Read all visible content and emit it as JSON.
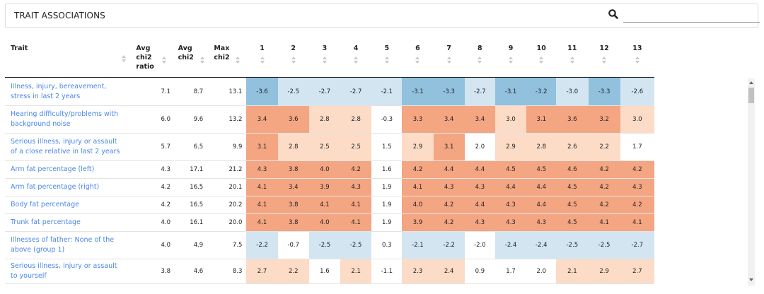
{
  "panel": {
    "title": "TRAIT ASSOCIATIONS"
  },
  "search": {
    "placeholder": "",
    "icon": "search-icon"
  },
  "table": {
    "columns": [
      {
        "key": "trait",
        "label": "Trait"
      },
      {
        "key": "avg_ratio",
        "label": "Avg chi2 ratio"
      },
      {
        "key": "avg_chi2",
        "label": "Avg chi2"
      },
      {
        "key": "max_chi2",
        "label": "Max chi2"
      },
      {
        "key": "c1",
        "label": "1"
      },
      {
        "key": "c2",
        "label": "2"
      },
      {
        "key": "c3",
        "label": "3"
      },
      {
        "key": "c4",
        "label": "4"
      },
      {
        "key": "c5",
        "label": "5"
      },
      {
        "key": "c6",
        "label": "6"
      },
      {
        "key": "c7",
        "label": "7"
      },
      {
        "key": "c8",
        "label": "8"
      },
      {
        "key": "c9",
        "label": "9"
      },
      {
        "key": "c10",
        "label": "10"
      },
      {
        "key": "c11",
        "label": "11"
      },
      {
        "key": "c12",
        "label": "12"
      },
      {
        "key": "c13",
        "label": "13"
      }
    ],
    "rows": [
      {
        "trait": "Illness, injury, bereavement, stress in last 2 years",
        "avg_ratio": "7.1",
        "avg_chi2": "8.7",
        "max_chi2": "13.1",
        "values": [
          "-3.6",
          "-2.5",
          "-2.7",
          "-2.7",
          "-2.1",
          "-3.1",
          "-3.3",
          "-2.7",
          "-3.1",
          "-3.2",
          "-3.0",
          "-3.3",
          "-2.6"
        ]
      },
      {
        "trait": "Hearing difficulty/problems with background noise",
        "avg_ratio": "6.0",
        "avg_chi2": "9.6",
        "max_chi2": "13.2",
        "values": [
          "3.4",
          "3.6",
          "2.8",
          "2.8",
          "-0.3",
          "3.3",
          "3.4",
          "3.4",
          "3.0",
          "3.1",
          "3.6",
          "3.2",
          "3.0"
        ]
      },
      {
        "trait": "Serious illness, injury or assault of a close relative in last 2 years",
        "avg_ratio": "5.7",
        "avg_chi2": "6.5",
        "max_chi2": "9.9",
        "values": [
          "3.1",
          "2.8",
          "2.5",
          "2.5",
          "1.5",
          "2.9",
          "3.1",
          "2.0",
          "2.9",
          "2.8",
          "2.6",
          "2.2",
          "1.7"
        ]
      },
      {
        "trait": "Arm fat percentage (left)",
        "avg_ratio": "4.3",
        "avg_chi2": "17.1",
        "max_chi2": "21.2",
        "values": [
          "4.3",
          "3.8",
          "4.0",
          "4.2",
          "1.6",
          "4.2",
          "4.4",
          "4.4",
          "4.5",
          "4.5",
          "4.6",
          "4.2",
          "4.2"
        ]
      },
      {
        "trait": "Arm fat percentage (right)",
        "avg_ratio": "4.2",
        "avg_chi2": "16.5",
        "max_chi2": "20.1",
        "values": [
          "4.1",
          "3.4",
          "3.9",
          "4.3",
          "1.9",
          "4.1",
          "4.3",
          "4.3",
          "4.4",
          "4.4",
          "4.5",
          "4.2",
          "4.3"
        ]
      },
      {
        "trait": "Body fat percentage",
        "avg_ratio": "4.2",
        "avg_chi2": "16.5",
        "max_chi2": "20.2",
        "values": [
          "4.1",
          "3.8",
          "4.1",
          "4.1",
          "1.9",
          "4.0",
          "4.2",
          "4.4",
          "4.3",
          "4.4",
          "4.5",
          "4.2",
          "4.2"
        ]
      },
      {
        "trait": "Trunk fat percentage",
        "avg_ratio": "4.0",
        "avg_chi2": "16.1",
        "max_chi2": "20.0",
        "values": [
          "4.1",
          "3.8",
          "4.0",
          "4.1",
          "1.9",
          "3.9",
          "4.2",
          "4.3",
          "4.3",
          "4.3",
          "4.5",
          "4.1",
          "4.1"
        ]
      },
      {
        "trait": "Illnesses of father: None of the above (group 1)",
        "avg_ratio": "4.0",
        "avg_chi2": "4.9",
        "max_chi2": "7.5",
        "values": [
          "-2.2",
          "-0.7",
          "-2.5",
          "-2.5",
          "0.3",
          "-2.1",
          "-2.2",
          "-2.0",
          "-2.4",
          "-2.4",
          "-2.5",
          "-2.5",
          "-2.7"
        ]
      },
      {
        "trait": "Serious illness, injury or assault to yourself",
        "avg_ratio": "3.8",
        "avg_chi2": "4.6",
        "max_chi2": "8.3",
        "values": [
          "2.7",
          "2.2",
          "1.6",
          "2.1",
          "-1.1",
          "2.3",
          "2.4",
          "0.9",
          "1.7",
          "2.0",
          "2.1",
          "2.9",
          "2.7"
        ]
      }
    ]
  },
  "colors": {
    "strong_negative": "#91c1dd",
    "light_negative": "#d2e5f0",
    "strong_positive": "#f4a582",
    "light_positive": "#fcdbc7",
    "neutral": "#ffffff",
    "trait_link": "#4a86e8"
  }
}
